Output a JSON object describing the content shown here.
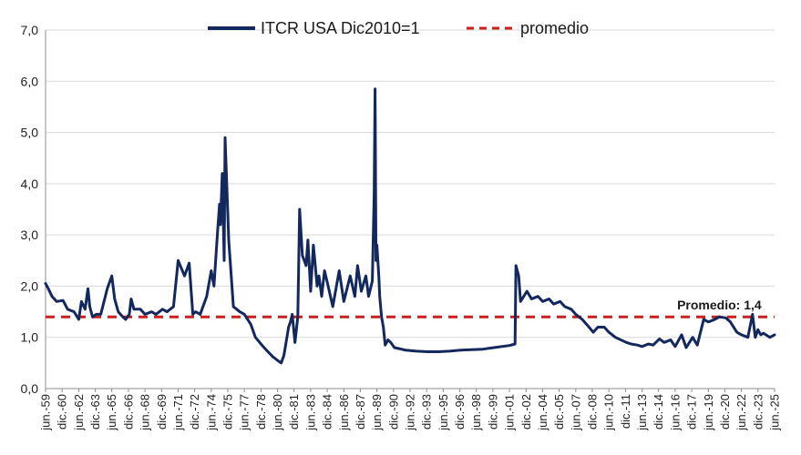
{
  "chart_data": {
    "type": "line",
    "title": "",
    "xlabel": "",
    "ylabel": "",
    "ylim": [
      0,
      7
    ],
    "y_ticks": [
      "0,0",
      "1,0",
      "2,0",
      "3,0",
      "4,0",
      "5,0",
      "6,0",
      "7,0"
    ],
    "x_ticks": [
      "jun.-59",
      "dic.-60",
      "jun.-62",
      "dic.-63",
      "jun.-65",
      "dic.-66",
      "jun.-68",
      "dic.-69",
      "jun.-71",
      "dic.-72",
      "jun.-74",
      "dic.-75",
      "jun.-77",
      "dic.-78",
      "jun.-80",
      "dic.-81",
      "jun.-83",
      "dic.-84",
      "jun.-86",
      "dic.-87",
      "jun.-89",
      "dic.-90",
      "jun.-92",
      "dic.-93",
      "jun.-95",
      "dic.-96",
      "jun.-98",
      "dic.-99",
      "jun.-01",
      "dic.-02",
      "jun.-04",
      "dic.-05",
      "jun.-07",
      "dic.-08",
      "jun.-10",
      "dic.-11",
      "jun.-13",
      "dic.-14",
      "jun.-16",
      "dic.-17",
      "jun.-19",
      "dic.-20",
      "jun.-22",
      "dic.-23",
      "jun.-25"
    ],
    "x_range": [
      "1959-06",
      "2025-06"
    ],
    "grid": "horizontal",
    "legend_position": "top",
    "series": [
      {
        "name": "ITCR USA Dic2010=1",
        "color": "#13285c",
        "style": "solid",
        "x": [
          "1959-06",
          "1959-09",
          "1960-01",
          "1960-06",
          "1961-01",
          "1961-06",
          "1962-01",
          "1962-06",
          "1962-09",
          "1963-01",
          "1963-04",
          "1963-06",
          "1963-09",
          "1964-01",
          "1964-06",
          "1965-01",
          "1965-06",
          "1965-09",
          "1966-01",
          "1966-06",
          "1966-09",
          "1967-01",
          "1967-03",
          "1967-06",
          "1968-01",
          "1968-06",
          "1969-01",
          "1969-06",
          "1970-01",
          "1970-06",
          "1971-01",
          "1971-06",
          "1972-01",
          "1972-06",
          "1972-10",
          "1973-01",
          "1973-06",
          "1974-01",
          "1974-06",
          "1974-09",
          "1975-01",
          "1975-03",
          "1975-04",
          "1975-06",
          "1975-08",
          "1975-09",
          "1976-01",
          "1976-06",
          "1977-01",
          "1977-06",
          "1978-01",
          "1978-06",
          "1979-01",
          "1979-06",
          "1980-01",
          "1980-06",
          "1980-10",
          "1981-01",
          "1981-06",
          "1981-08",
          "1981-10",
          "1982-01",
          "1982-04",
          "1982-06",
          "1982-09",
          "1983-01",
          "1983-03",
          "1983-06",
          "1983-09",
          "1984-01",
          "1984-03",
          "1984-06",
          "1984-09",
          "1985-01",
          "1985-06",
          "1986-01",
          "1986-06",
          "1987-01",
          "1987-06",
          "1987-09",
          "1988-01",
          "1988-06",
          "1988-09",
          "1989-01",
          "1989-03",
          "1989-04",
          "1989-05",
          "1989-06",
          "1989-08",
          "1989-09",
          "1989-11",
          "1990-01",
          "1990-03",
          "1990-06",
          "1990-09",
          "1991-01",
          "1991-06",
          "1992-01",
          "1993-01",
          "1994-01",
          "1995-01",
          "1996-01",
          "1997-01",
          "1998-01",
          "1999-01",
          "2000-01",
          "2001-06",
          "2001-12",
          "2002-01",
          "2002-04",
          "2002-06",
          "2003-01",
          "2003-06",
          "2004-01",
          "2004-06",
          "2005-01",
          "2005-06",
          "2006-01",
          "2006-06",
          "2007-01",
          "2007-06",
          "2008-01",
          "2008-06",
          "2009-01",
          "2009-06",
          "2010-01",
          "2010-06",
          "2011-01",
          "2012-01",
          "2012-06",
          "2013-01",
          "2013-06",
          "2014-01",
          "2014-06",
          "2015-01",
          "2015-06",
          "2016-01",
          "2016-06",
          "2017-01",
          "2017-06",
          "2018-01",
          "2018-06",
          "2019-01",
          "2019-06",
          "2020-01",
          "2020-06",
          "2021-01",
          "2021-06",
          "2022-01",
          "2022-06",
          "2023-01",
          "2023-06",
          "2023-09",
          "2023-12",
          "2024-03",
          "2024-06",
          "2025-01",
          "2025-06"
        ],
        "values": [
          2.05,
          1.95,
          1.8,
          1.7,
          1.72,
          1.55,
          1.5,
          1.35,
          1.7,
          1.55,
          1.95,
          1.6,
          1.4,
          1.45,
          1.45,
          1.95,
          2.2,
          1.75,
          1.5,
          1.4,
          1.35,
          1.45,
          1.75,
          1.55,
          1.55,
          1.45,
          1.5,
          1.45,
          1.55,
          1.5,
          1.6,
          2.5,
          2.2,
          2.45,
          1.45,
          1.5,
          1.45,
          1.8,
          2.3,
          2.0,
          3.1,
          3.6,
          3.2,
          4.2,
          2.5,
          4.9,
          2.9,
          1.6,
          1.5,
          1.45,
          1.25,
          1.0,
          0.85,
          0.75,
          0.62,
          0.55,
          0.5,
          0.65,
          1.2,
          1.3,
          1.45,
          0.9,
          1.4,
          3.5,
          2.6,
          2.4,
          2.9,
          1.9,
          2.8,
          2.0,
          2.2,
          1.8,
          2.3,
          2.0,
          1.6,
          2.3,
          1.7,
          2.2,
          1.8,
          2.4,
          1.9,
          2.2,
          1.8,
          2.1,
          3.8,
          5.85,
          2.5,
          2.8,
          2.2,
          1.8,
          1.4,
          1.2,
          0.85,
          0.95,
          0.9,
          0.8,
          0.78,
          0.75,
          0.73,
          0.72,
          0.72,
          0.73,
          0.75,
          0.76,
          0.77,
          0.8,
          0.84,
          0.87,
          2.4,
          2.2,
          1.7,
          1.9,
          1.75,
          1.8,
          1.7,
          1.75,
          1.65,
          1.7,
          1.6,
          1.55,
          1.45,
          1.35,
          1.25,
          1.1,
          1.2,
          1.2,
          1.1,
          1.0,
          0.9,
          0.87,
          0.85,
          0.82,
          0.87,
          0.85,
          0.97,
          0.9,
          0.95,
          0.82,
          1.05,
          0.8,
          1.0,
          0.85,
          1.35,
          1.3,
          1.35,
          1.4,
          1.38,
          1.3,
          1.1,
          1.05,
          1.0,
          1.45,
          1.0,
          1.15,
          1.05,
          1.08,
          1.0,
          1.05
        ]
      },
      {
        "name": "promedio",
        "color": "#cc1f1f",
        "style": "dashed",
        "value": 1.4
      }
    ],
    "annotations": [
      {
        "text": "Promedio: 1,4",
        "x": "2020-06",
        "y": 1.55
      }
    ]
  }
}
